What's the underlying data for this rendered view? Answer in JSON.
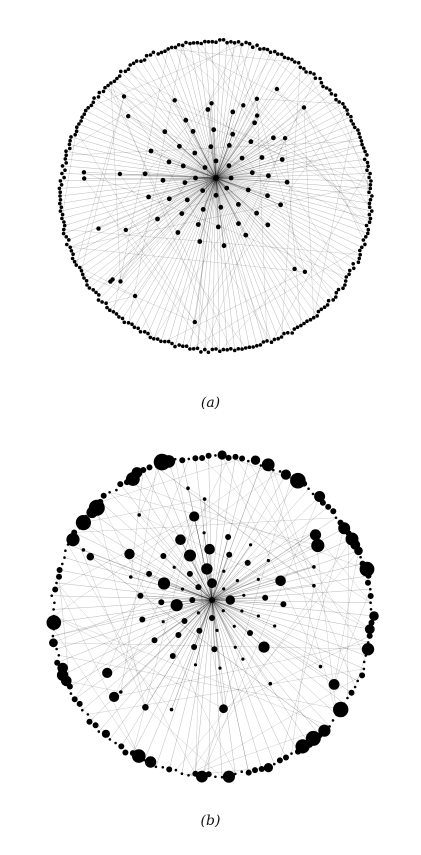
{
  "figure": {
    "panels": [
      {
        "caption": "(a)",
        "node_sizing": "uniform"
      },
      {
        "caption": "(b)",
        "node_sizing": "varied"
      }
    ],
    "colors": {
      "node": "#000000",
      "edge": "#000000",
      "background": "#ffffff"
    }
  }
}
